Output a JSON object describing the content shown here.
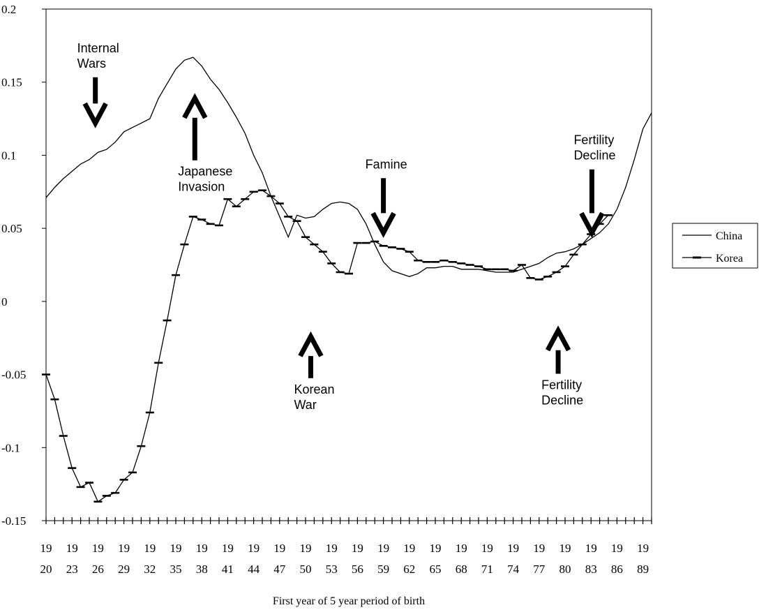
{
  "chart_data": {
    "type": "line",
    "xlabel": "First year of 5 year period of birth",
    "ylabel": "",
    "title": "",
    "xlim": [
      1920,
      1990
    ],
    "ylim": [
      -0.15,
      0.2
    ],
    "yticks": [
      {
        "value": 0.2,
        "label": "0.2"
      },
      {
        "value": 0.15,
        "label": "0.15"
      },
      {
        "value": 0.1,
        "label": "0.1"
      },
      {
        "value": 0.05,
        "label": "0.05"
      },
      {
        "value": 0,
        "label": "0"
      },
      {
        "value": -0.05,
        "label": "-0.05"
      },
      {
        "value": -0.1,
        "label": "-0.1"
      },
      {
        "value": -0.15,
        "label": "-0.15"
      }
    ],
    "xtick_labels": [
      {
        "year": 1920,
        "top": "19",
        "bottom": "20"
      },
      {
        "year": 1923,
        "top": "19",
        "bottom": "23"
      },
      {
        "year": 1926,
        "top": "19",
        "bottom": "26"
      },
      {
        "year": 1929,
        "top": "19",
        "bottom": "29"
      },
      {
        "year": 1932,
        "top": "19",
        "bottom": "32"
      },
      {
        "year": 1935,
        "top": "19",
        "bottom": "35"
      },
      {
        "year": 1938,
        "top": "19",
        "bottom": "38"
      },
      {
        "year": 1941,
        "top": "19",
        "bottom": "41"
      },
      {
        "year": 1944,
        "top": "19",
        "bottom": "44"
      },
      {
        "year": 1947,
        "top": "19",
        "bottom": "47"
      },
      {
        "year": 1950,
        "top": "19",
        "bottom": "50"
      },
      {
        "year": 1953,
        "top": "19",
        "bottom": "53"
      },
      {
        "year": 1956,
        "top": "19",
        "bottom": "56"
      },
      {
        "year": 1959,
        "top": "19",
        "bottom": "59"
      },
      {
        "year": 1962,
        "top": "19",
        "bottom": "62"
      },
      {
        "year": 1965,
        "top": "19",
        "bottom": "65"
      },
      {
        "year": 1968,
        "top": "19",
        "bottom": "68"
      },
      {
        "year": 1971,
        "top": "19",
        "bottom": "71"
      },
      {
        "year": 1974,
        "top": "19",
        "bottom": "74"
      },
      {
        "year": 1977,
        "top": "19",
        "bottom": "77"
      },
      {
        "year": 1980,
        "top": "19",
        "bottom": "80"
      },
      {
        "year": 1983,
        "top": "19",
        "bottom": "83"
      },
      {
        "year": 1986,
        "top": "19",
        "bottom": "86"
      },
      {
        "year": 1989,
        "top": "19",
        "bottom": "89"
      }
    ],
    "legend": {
      "position": "right"
    },
    "series": [
      {
        "name": "China",
        "marker": "none",
        "x": [
          1920,
          1921,
          1922,
          1923,
          1924,
          1925,
          1926,
          1927,
          1928,
          1929,
          1930,
          1931,
          1932,
          1933,
          1934,
          1935,
          1936,
          1937,
          1938,
          1939,
          1940,
          1941,
          1942,
          1943,
          1944,
          1945,
          1946,
          1947,
          1948,
          1949,
          1950,
          1951,
          1952,
          1953,
          1954,
          1955,
          1956,
          1957,
          1958,
          1959,
          1960,
          1961,
          1962,
          1963,
          1964,
          1965,
          1966,
          1967,
          1968,
          1969,
          1970,
          1971,
          1972,
          1973,
          1974,
          1975,
          1976,
          1977,
          1978,
          1979,
          1980,
          1981,
          1982,
          1983,
          1984,
          1985,
          1986,
          1987,
          1988,
          1989,
          1990
        ],
        "y": [
          0.071,
          0.078,
          0.084,
          0.089,
          0.094,
          0.097,
          0.102,
          0.104,
          0.109,
          0.116,
          0.119,
          0.122,
          0.125,
          0.139,
          0.149,
          0.159,
          0.165,
          0.167,
          0.161,
          0.152,
          0.145,
          0.136,
          0.126,
          0.115,
          0.1,
          0.088,
          0.072,
          0.058,
          0.044,
          0.059,
          0.057,
          0.058,
          0.063,
          0.067,
          0.068,
          0.067,
          0.063,
          0.053,
          0.039,
          0.027,
          0.021,
          0.019,
          0.017,
          0.019,
          0.023,
          0.023,
          0.024,
          0.024,
          0.022,
          0.022,
          0.022,
          0.021,
          0.02,
          0.02,
          0.02,
          0.022,
          0.024,
          0.026,
          0.03,
          0.033,
          0.034,
          0.036,
          0.039,
          0.043,
          0.047,
          0.053,
          0.063,
          0.078,
          0.097,
          0.118,
          0.129
        ]
      },
      {
        "name": "Korea",
        "marker": "dash",
        "x": [
          1920,
          1921,
          1922,
          1923,
          1924,
          1925,
          1926,
          1927,
          1928,
          1929,
          1930,
          1931,
          1932,
          1933,
          1934,
          1935,
          1936,
          1937,
          1938,
          1939,
          1940,
          1941,
          1942,
          1943,
          1944,
          1945,
          1946,
          1947,
          1948,
          1949,
          1950,
          1951,
          1952,
          1953,
          1954,
          1955,
          1956,
          1957,
          1958,
          1959,
          1960,
          1961,
          1962,
          1963,
          1964,
          1965,
          1966,
          1967,
          1968,
          1969,
          1970,
          1971,
          1972,
          1973,
          1974,
          1975,
          1976,
          1977,
          1978,
          1979,
          1980,
          1981,
          1982,
          1983,
          1984,
          1985
        ],
        "y": [
          -0.05,
          -0.067,
          -0.092,
          -0.114,
          -0.127,
          -0.124,
          -0.137,
          -0.133,
          -0.131,
          -0.122,
          -0.117,
          -0.099,
          -0.076,
          -0.042,
          -0.013,
          0.018,
          0.039,
          0.058,
          0.056,
          0.053,
          0.052,
          0.07,
          0.065,
          0.07,
          0.075,
          0.076,
          0.072,
          0.067,
          0.058,
          0.055,
          0.044,
          0.039,
          0.034,
          0.026,
          0.02,
          0.019,
          0.04,
          0.04,
          0.041,
          0.038,
          0.037,
          0.036,
          0.034,
          0.028,
          0.027,
          0.027,
          0.028,
          0.027,
          0.026,
          0.025,
          0.024,
          0.022,
          0.022,
          0.022,
          0.021,
          0.025,
          0.016,
          0.015,
          0.017,
          0.02,
          0.024,
          0.032,
          0.039,
          0.046,
          0.053,
          0.059
        ]
      }
    ],
    "annotations": [
      {
        "lines": [
          "Internal",
          "Wars"
        ],
        "year": 1925.7,
        "value": 0.16,
        "arrow": "down",
        "arrow_tip": 0.122
      },
      {
        "lines": [
          "Japanese",
          "Invasion"
        ],
        "year": 1937.2,
        "value": 0.086,
        "arrow": "up",
        "arrow_tip": 0.139
      },
      {
        "lines": [
          "Famine"
        ],
        "year": 1959,
        "value": 0.091,
        "arrow": "down",
        "arrow_tip": 0.047
      },
      {
        "lines": [
          "Fertility",
          "Decline"
        ],
        "year": 1983.1,
        "value": 0.097,
        "arrow": "down",
        "arrow_tip": 0.047
      },
      {
        "lines": [
          "Korean",
          "War"
        ],
        "year": 1950.6,
        "value": -0.063,
        "arrow": "up",
        "arrow_tip": -0.024
      },
      {
        "lines": [
          "Fertility",
          "Decline"
        ],
        "year": 1979.2,
        "value": -0.06,
        "arrow": "up",
        "arrow_tip": -0.02
      }
    ]
  }
}
